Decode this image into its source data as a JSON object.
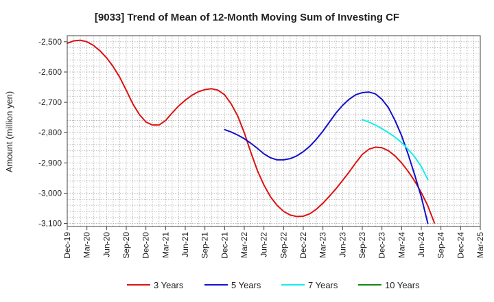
{
  "chart_data": {
    "type": "line",
    "title": "[9033]  Trend of Mean of 12-Month Moving Sum of Investing CF",
    "xlabel": "",
    "ylabel": "Amount (million yen)",
    "ylim": [
      -3110,
      -2480
    ],
    "y_ticks": [
      -2500,
      -2600,
      -2700,
      -2800,
      -2900,
      -3000,
      -3100
    ],
    "y_tick_labels": [
      "-2,500",
      "-2,600",
      "-2,700",
      "-2,800",
      "-2,900",
      "-3,000",
      "-3,100"
    ],
    "x_tick_labels": [
      "Dec-19",
      "Mar-20",
      "Jun-20",
      "Sep-20",
      "Dec-20",
      "Mar-21",
      "Jun-21",
      "Sep-21",
      "Dec-21",
      "Mar-22",
      "Jun-22",
      "Sep-22",
      "Dec-22",
      "Mar-23",
      "Jun-23",
      "Sep-23",
      "Dec-23",
      "Mar-24",
      "Jun-24",
      "Sep-24",
      "Dec-24",
      "Mar-25"
    ],
    "x_start": "Dec-19",
    "x_unit": "months since Dec-19",
    "grid": true,
    "legend_position": "bottom",
    "series": [
      {
        "name": "3 Years",
        "color": "#dd1111",
        "x": [
          0,
          1,
          2,
          3,
          4,
          5,
          6,
          7,
          8,
          9,
          10,
          11,
          12,
          13,
          14,
          15,
          16,
          17,
          18,
          19,
          20,
          21,
          22,
          23,
          24,
          25,
          26,
          27,
          28,
          29,
          30,
          31,
          32,
          33,
          34,
          35,
          36,
          37,
          38,
          39,
          40,
          41,
          42,
          43,
          44,
          45,
          46,
          47,
          48,
          49,
          50,
          51,
          52,
          53,
          54,
          55,
          56,
          57
        ],
        "values": [
          -2505,
          -2497,
          -2495,
          -2500,
          -2512,
          -2530,
          -2553,
          -2582,
          -2617,
          -2660,
          -2705,
          -2740,
          -2765,
          -2775,
          -2775,
          -2760,
          -2735,
          -2712,
          -2693,
          -2677,
          -2665,
          -2658,
          -2655,
          -2660,
          -2675,
          -2705,
          -2745,
          -2800,
          -2865,
          -2925,
          -2973,
          -3012,
          -3040,
          -3060,
          -3072,
          -3077,
          -3076,
          -3068,
          -3053,
          -3033,
          -3010,
          -2985,
          -2958,
          -2930,
          -2900,
          -2872,
          -2855,
          -2848,
          -2850,
          -2860,
          -2877,
          -2900,
          -2928,
          -2960,
          -2998,
          -3042,
          -3098,
          null
        ]
      },
      {
        "name": "5 Years",
        "color": "#1111cc",
        "x": [
          24,
          25,
          26,
          27,
          28,
          29,
          30,
          31,
          32,
          33,
          34,
          35,
          36,
          37,
          38,
          39,
          40,
          41,
          42,
          43,
          44,
          45,
          46,
          47,
          48,
          49,
          50,
          51,
          52,
          53,
          54,
          55,
          56,
          57
        ],
        "values": [
          -2790,
          -2798,
          -2808,
          -2820,
          -2835,
          -2852,
          -2870,
          -2883,
          -2890,
          -2890,
          -2886,
          -2877,
          -2863,
          -2845,
          -2822,
          -2795,
          -2765,
          -2735,
          -2710,
          -2690,
          -2675,
          -2668,
          -2666,
          -2672,
          -2690,
          -2718,
          -2760,
          -2810,
          -2872,
          -2940,
          -3012,
          -3100,
          null,
          null
        ]
      },
      {
        "name": "7 Years",
        "color": "#11eeee",
        "x": [
          45,
          46,
          47,
          48,
          49,
          50,
          51,
          52,
          53,
          54,
          55
        ],
        "values": [
          -2757,
          -2765,
          -2775,
          -2787,
          -2800,
          -2815,
          -2833,
          -2855,
          -2880,
          -2912,
          -2955
        ]
      },
      {
        "name": "10 Years",
        "color": "#118811",
        "x": [],
        "values": []
      }
    ]
  }
}
